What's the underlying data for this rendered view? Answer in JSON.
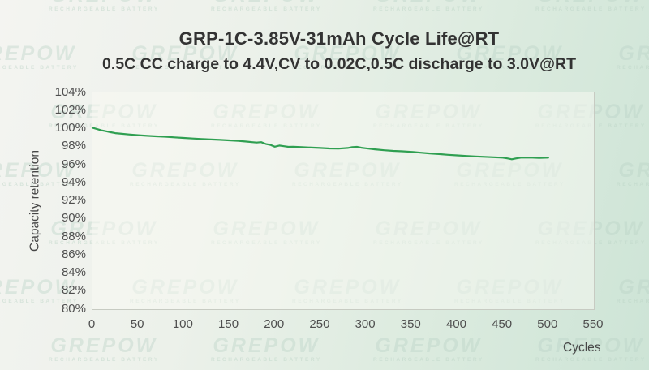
{
  "header": {
    "title": "GRP-1C-3.85V-31mAh Cycle Life@RT",
    "subtitle": "0.5C CC charge to 4.4V,CV to 0.02C,0.5C discharge to 3.0V@RT"
  },
  "watermark": {
    "text": "GREPOW",
    "subtext": "RECHARGEABLE BATTERY"
  },
  "colors": {
    "line_green": "#2f9f51",
    "background_green": "#cde4d6",
    "background_white": "#f4f4f1",
    "axis_text": "#4f4f4f",
    "title_text": "#333333",
    "plot_border": "#c7cbc2"
  },
  "chart_data": {
    "type": "line",
    "title": "GRP-1C-3.85V-31mAh Cycle Life@RT",
    "subtitle": "0.5C CC charge to 4.4V,CV to 0.02C,0.5C discharge to 3.0V@RT",
    "xlabel": "Cycles",
    "ylabel": "Capacity retention",
    "xlim": [
      0,
      550
    ],
    "ylim": [
      80,
      104
    ],
    "grid": false,
    "legend": "none",
    "x_tick_labels": [
      "0",
      "50",
      "100",
      "150",
      "200",
      "250",
      "300",
      "350",
      "400",
      "450",
      "500",
      "550"
    ],
    "y_tick_labels": [
      "104%",
      "102%",
      "100%",
      "98%",
      "96%",
      "94%",
      "92%",
      "90%",
      "88%",
      "86%",
      "84%",
      "82%",
      "80%"
    ],
    "series": [
      {
        "name": "Capacity retention",
        "color": "#2f9f51",
        "points": [
          [
            0,
            100.1
          ],
          [
            5,
            99.95
          ],
          [
            10,
            99.8
          ],
          [
            15,
            99.7
          ],
          [
            20,
            99.6
          ],
          [
            25,
            99.5
          ],
          [
            30,
            99.45
          ],
          [
            40,
            99.35
          ],
          [
            50,
            99.27
          ],
          [
            60,
            99.2
          ],
          [
            70,
            99.15
          ],
          [
            80,
            99.1
          ],
          [
            90,
            99.03
          ],
          [
            100,
            98.97
          ],
          [
            110,
            98.9
          ],
          [
            120,
            98.85
          ],
          [
            130,
            98.8
          ],
          [
            140,
            98.75
          ],
          [
            150,
            98.7
          ],
          [
            160,
            98.63
          ],
          [
            165,
            98.6
          ],
          [
            170,
            98.55
          ],
          [
            175,
            98.5
          ],
          [
            180,
            98.45
          ],
          [
            185,
            98.5
          ],
          [
            190,
            98.3
          ],
          [
            195,
            98.2
          ],
          [
            200,
            98.0
          ],
          [
            205,
            98.12
          ],
          [
            210,
            98.05
          ],
          [
            215,
            97.98
          ],
          [
            220,
            98.0
          ],
          [
            230,
            97.95
          ],
          [
            240,
            97.9
          ],
          [
            250,
            97.85
          ],
          [
            260,
            97.8
          ],
          [
            270,
            97.78
          ],
          [
            280,
            97.85
          ],
          [
            285,
            97.95
          ],
          [
            290,
            97.98
          ],
          [
            295,
            97.88
          ],
          [
            300,
            97.82
          ],
          [
            310,
            97.7
          ],
          [
            320,
            97.6
          ],
          [
            330,
            97.53
          ],
          [
            340,
            97.48
          ],
          [
            350,
            97.42
          ],
          [
            360,
            97.33
          ],
          [
            370,
            97.25
          ],
          [
            380,
            97.18
          ],
          [
            390,
            97.1
          ],
          [
            400,
            97.03
          ],
          [
            410,
            96.97
          ],
          [
            420,
            96.92
          ],
          [
            430,
            96.87
          ],
          [
            440,
            96.83
          ],
          [
            450,
            96.78
          ],
          [
            455,
            96.7
          ],
          [
            460,
            96.6
          ],
          [
            465,
            96.7
          ],
          [
            470,
            96.78
          ],
          [
            480,
            96.8
          ],
          [
            490,
            96.75
          ],
          [
            500,
            96.78
          ]
        ]
      }
    ]
  }
}
